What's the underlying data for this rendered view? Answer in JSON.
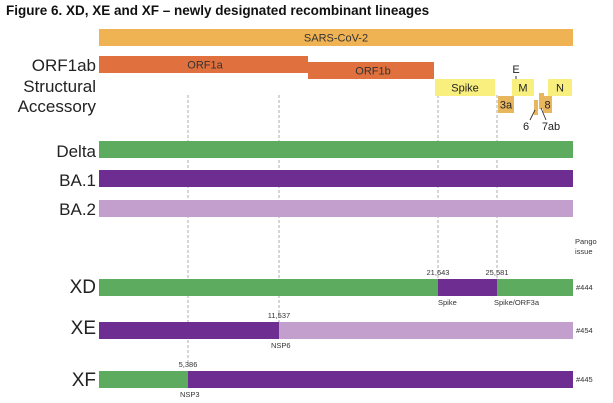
{
  "title": "Figure 6. XD, XE and XF – newly designated recombinant lineages",
  "colors": {
    "sars": "#f0b353",
    "orf1": "#e0703d",
    "spike": "#f9ef7e",
    "accessory": "#e8b65c",
    "delta": "#5dab5f",
    "ba1": "#6e2d91",
    "ba2": "#c39fcd"
  },
  "genome": {
    "sars_label": "SARS-CoV-2",
    "orf1a_label": "ORF1a",
    "orf1b_label": "ORF1b",
    "spike_label": "Spike",
    "e_label": "E",
    "m_label": "M",
    "n_label": "N",
    "orf3a_label": "3a",
    "orf8_label": "8",
    "orf6_label": "6",
    "orf7ab_label": "7ab"
  },
  "row_labels": {
    "orf1ab": "ORF1ab",
    "structural": "Structural",
    "accessory": "Accessory",
    "delta": "Delta",
    "ba1": "BA.1",
    "ba2": "BA.2"
  },
  "pango_header": [
    "Pango",
    "issue"
  ],
  "recombinants": [
    {
      "name": "XD",
      "issue": "#444",
      "breakpoints": [
        {
          "position": "21,643",
          "gene": "Spike"
        },
        {
          "position": "25,581",
          "gene": "Spike/ORF3a"
        }
      ]
    },
    {
      "name": "XE",
      "issue": "#454",
      "breakpoints": [
        {
          "position": "11,537",
          "gene": "NSP6"
        }
      ]
    },
    {
      "name": "XF",
      "issue": "#445",
      "breakpoints": [
        {
          "position": "5,386",
          "gene": "NSP3"
        }
      ]
    }
  ]
}
